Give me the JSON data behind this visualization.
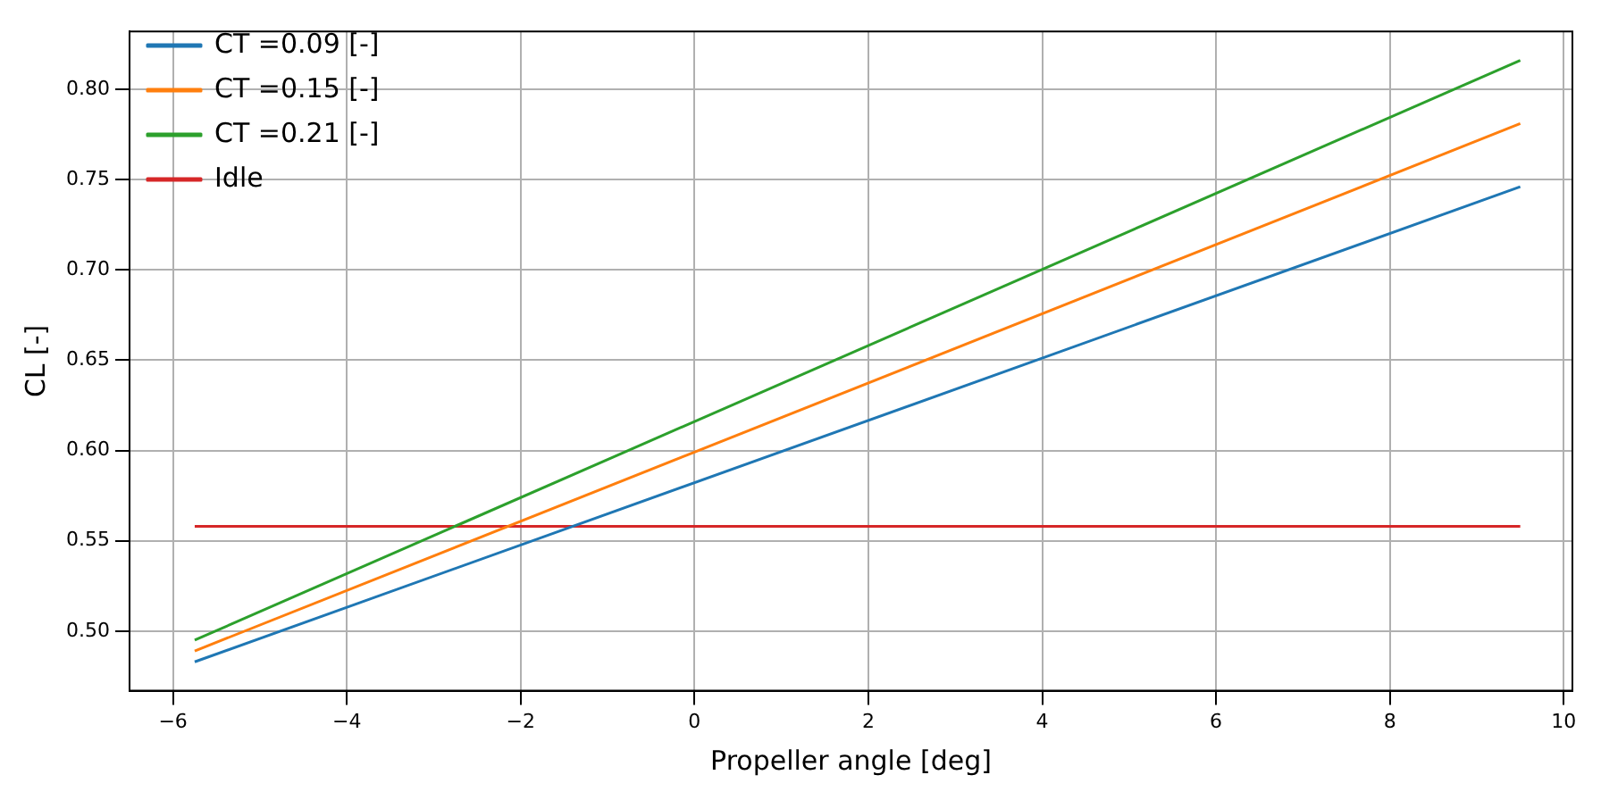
{
  "chart_data": {
    "type": "line",
    "xlabel": "Propeller angle [deg]",
    "ylabel": "CL [-]",
    "x": [
      -5.75,
      9.5
    ],
    "series": [
      {
        "name": "CT =0.09 [-]",
        "color": "#1f77b4",
        "values": [
          0.483,
          0.746
        ]
      },
      {
        "name": "CT =0.15 [-]",
        "color": "#ff7f0e",
        "values": [
          0.489,
          0.781
        ]
      },
      {
        "name": "CT =0.21 [-]",
        "color": "#2ca02c",
        "values": [
          0.495,
          0.816
        ]
      },
      {
        "name": "Idle",
        "color": "#d62728",
        "values": [
          0.558,
          0.558
        ]
      }
    ],
    "xlim": [
      -6.5,
      10.1
    ],
    "xticks": [
      -6,
      -4,
      -2,
      0,
      2,
      4,
      6,
      8,
      10
    ],
    "ylim": [
      0.467,
      0.832
    ],
    "yticks": [
      {
        "value": 0.5,
        "label": "0.50"
      },
      0.55,
      {
        "value": 0.6,
        "label": "0.60"
      },
      0.65,
      {
        "value": 0.7,
        "label": "0.70"
      },
      0.75,
      {
        "value": 0.8,
        "label": "0.80"
      }
    ],
    "grid": true,
    "legend": "top left",
    "marker": "none",
    "line_style": "solid"
  }
}
